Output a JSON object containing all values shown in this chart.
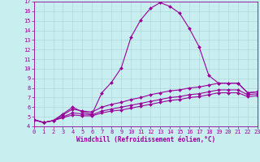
{
  "background_color": "#c8eef0",
  "grid_color": "#b0d8da",
  "line_color": "#990099",
  "xlabel": "Windchill (Refroidissement éolien,°C)",
  "xlim": [
    0,
    23
  ],
  "ylim": [
    4,
    17
  ],
  "yticks": [
    4,
    5,
    6,
    7,
    8,
    9,
    10,
    11,
    12,
    13,
    14,
    15,
    16,
    17
  ],
  "xticks": [
    0,
    1,
    2,
    3,
    4,
    5,
    6,
    7,
    8,
    9,
    10,
    11,
    12,
    13,
    14,
    15,
    16,
    17,
    18,
    19,
    20,
    21,
    22,
    23
  ],
  "curves": [
    {
      "x": [
        0,
        1,
        2,
        3,
        4,
        5,
        6,
        7,
        8,
        9,
        10,
        11,
        12,
        13,
        14,
        15,
        16,
        17,
        18,
        19,
        20,
        21,
        22,
        23
      ],
      "y": [
        4.7,
        4.4,
        4.6,
        5.3,
        6.0,
        5.5,
        5.3,
        7.5,
        8.6,
        10.1,
        13.3,
        15.1,
        16.3,
        16.9,
        16.5,
        15.8,
        14.2,
        12.3,
        9.3,
        8.5,
        8.5,
        8.5,
        7.5,
        7.6
      ]
    },
    {
      "x": [
        0,
        1,
        2,
        3,
        4,
        5,
        6,
        7,
        8,
        9,
        10,
        11,
        12,
        13,
        14,
        15,
        16,
        17,
        18,
        19,
        20,
        21,
        22,
        23
      ],
      "y": [
        4.7,
        4.4,
        4.6,
        5.2,
        5.8,
        5.6,
        5.5,
        6.0,
        6.3,
        6.5,
        6.8,
        7.0,
        7.3,
        7.5,
        7.7,
        7.8,
        8.0,
        8.1,
        8.3,
        8.5,
        8.5,
        8.5,
        7.5,
        7.6
      ]
    },
    {
      "x": [
        0,
        1,
        2,
        3,
        4,
        5,
        6,
        7,
        8,
        9,
        10,
        11,
        12,
        13,
        14,
        15,
        16,
        17,
        18,
        19,
        20,
        21,
        22,
        23
      ],
      "y": [
        4.7,
        4.4,
        4.6,
        5.0,
        5.4,
        5.3,
        5.2,
        5.6,
        5.8,
        6.0,
        6.2,
        6.4,
        6.6,
        6.8,
        7.0,
        7.1,
        7.3,
        7.4,
        7.6,
        7.8,
        7.8,
        7.8,
        7.3,
        7.4
      ]
    },
    {
      "x": [
        0,
        1,
        2,
        3,
        4,
        5,
        6,
        7,
        8,
        9,
        10,
        11,
        12,
        13,
        14,
        15,
        16,
        17,
        18,
        19,
        20,
        21,
        22,
        23
      ],
      "y": [
        4.7,
        4.4,
        4.6,
        4.9,
        5.2,
        5.1,
        5.1,
        5.4,
        5.6,
        5.7,
        5.9,
        6.1,
        6.3,
        6.5,
        6.7,
        6.8,
        7.0,
        7.1,
        7.3,
        7.5,
        7.5,
        7.5,
        7.1,
        7.2
      ]
    }
  ],
  "marker": "D",
  "marker_size": 2.0,
  "line_width": 0.8,
  "font_size_label": 5.5,
  "font_size_tick": 5.0
}
